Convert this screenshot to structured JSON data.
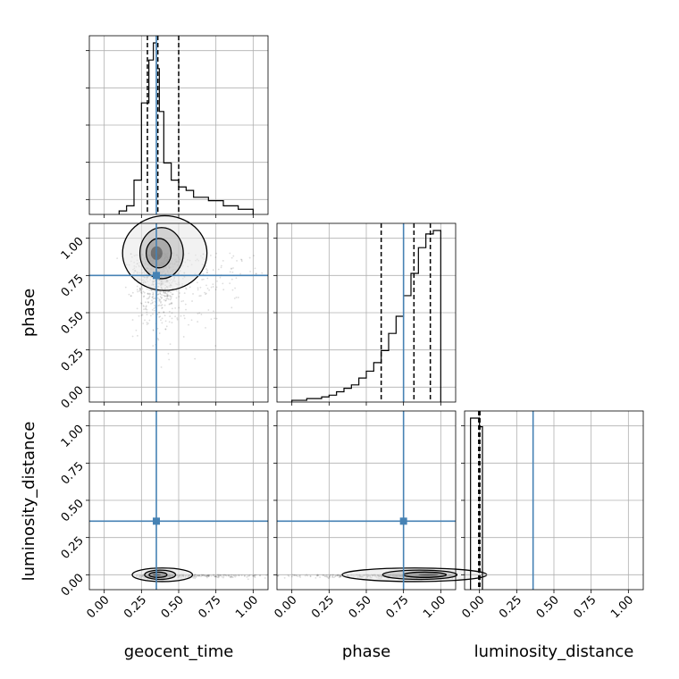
{
  "chart_data": {
    "type": "corner",
    "parameters": [
      "geocent_time",
      "phase",
      "luminosity_distance"
    ],
    "truth": {
      "geocent_time": 0.35,
      "phase": 0.75,
      "luminosity_distance": 0.36
    },
    "truth_color": "#4682b4",
    "grid": true,
    "ticks": {
      "values": [
        0.0,
        0.25,
        0.5,
        0.75,
        1.0
      ],
      "labels": [
        "0.00",
        "0.25",
        "0.50",
        "0.75",
        "1.00"
      ]
    },
    "histograms": {
      "geocent_time": {
        "edges": [
          0.1,
          0.15,
          0.2,
          0.25,
          0.3,
          0.33,
          0.35,
          0.37,
          0.4,
          0.45,
          0.5,
          0.55,
          0.6,
          0.7,
          0.8,
          0.9,
          1.0
        ],
        "counts": [
          0.02,
          0.05,
          0.2,
          0.65,
          0.9,
          1.0,
          0.85,
          0.6,
          0.3,
          0.2,
          0.16,
          0.14,
          0.1,
          0.08,
          0.05,
          0.03
        ],
        "quantiles": [
          0.29,
          0.36,
          0.5
        ]
      },
      "phase": {
        "edges": [
          0.0,
          0.1,
          0.2,
          0.25,
          0.3,
          0.35,
          0.4,
          0.45,
          0.5,
          0.55,
          0.6,
          0.65,
          0.7,
          0.75,
          0.8,
          0.85,
          0.9,
          0.95,
          1.0
        ],
        "counts": [
          0.01,
          0.02,
          0.03,
          0.04,
          0.06,
          0.08,
          0.1,
          0.14,
          0.18,
          0.23,
          0.3,
          0.4,
          0.5,
          0.62,
          0.75,
          0.9,
          0.98,
          1.0
        ],
        "quantiles": [
          0.6,
          0.82,
          0.93
        ]
      },
      "luminosity_distance": {
        "edges": [
          -0.06,
          0.0,
          0.02
        ],
        "counts": [
          1.0,
          0.95
        ],
        "quantiles": [
          -0.005,
          0.0,
          0.003
        ]
      }
    },
    "density": [
      {
        "x": "geocent_time",
        "y": "phase",
        "center": [
          0.35,
          0.9
        ],
        "spread": [
          0.07,
          0.22
        ],
        "tail": "right"
      },
      {
        "x": "geocent_time",
        "y": "luminosity_distance",
        "center": [
          0.35,
          0.0
        ],
        "spread": [
          0.05,
          0.01
        ],
        "tail": "right"
      },
      {
        "x": "phase",
        "y": "luminosity_distance",
        "center": [
          0.92,
          0.0
        ],
        "spread": [
          0.12,
          0.01
        ],
        "tail": "left"
      }
    ]
  }
}
